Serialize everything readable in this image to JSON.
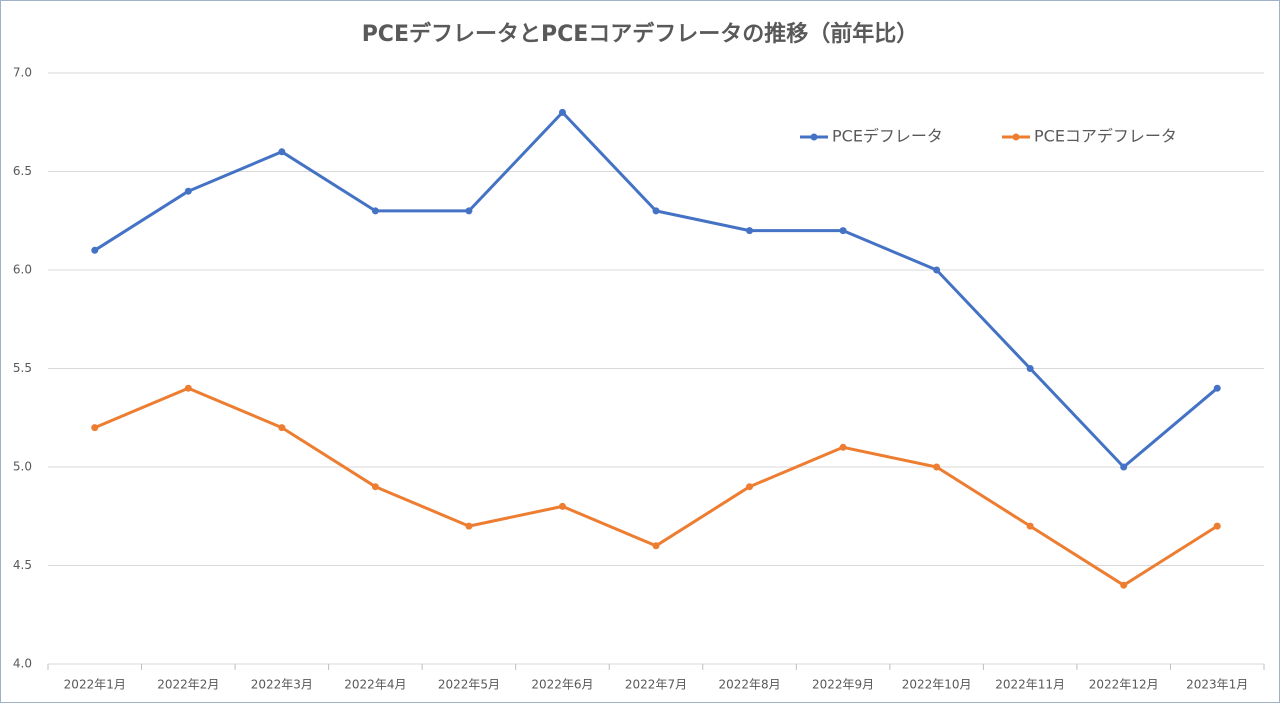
{
  "chart_data": {
    "type": "line",
    "title": "PCEデフレータとPCEコアデフレータの推移（前年比）",
    "categories": [
      "2022年1月",
      "2022年2月",
      "2022年3月",
      "2022年4月",
      "2022年5月",
      "2022年6月",
      "2022年7月",
      "2022年8月",
      "2022年9月",
      "2022年10月",
      "2022年11月",
      "2022年12月",
      "2023年1月"
    ],
    "series": [
      {
        "name": "PCEデフレータ",
        "color": "#4472c4",
        "values": [
          6.1,
          6.4,
          6.6,
          6.3,
          6.3,
          6.8,
          6.3,
          6.2,
          6.2,
          6.0,
          5.5,
          5.0,
          5.4
        ]
      },
      {
        "name": "PCEコアデフレータ",
        "color": "#ed7d31",
        "values": [
          5.2,
          5.4,
          5.2,
          4.9,
          4.7,
          4.8,
          4.6,
          4.9,
          5.1,
          5.0,
          4.7,
          4.4,
          4.7
        ]
      }
    ],
    "ylim": [
      4,
      7
    ],
    "yticks": [
      {
        "value": 4,
        "label": "4.0"
      },
      {
        "value": 4.5,
        "label": "4.5"
      },
      {
        "value": 5,
        "label": "5.0"
      },
      {
        "value": 5.5,
        "label": "5.5"
      },
      {
        "value": 6,
        "label": "6.0"
      },
      {
        "value": 6.5,
        "label": "6.5"
      },
      {
        "value": 7,
        "label": "7.0"
      }
    ],
    "grid": true,
    "legend": "upper right"
  }
}
